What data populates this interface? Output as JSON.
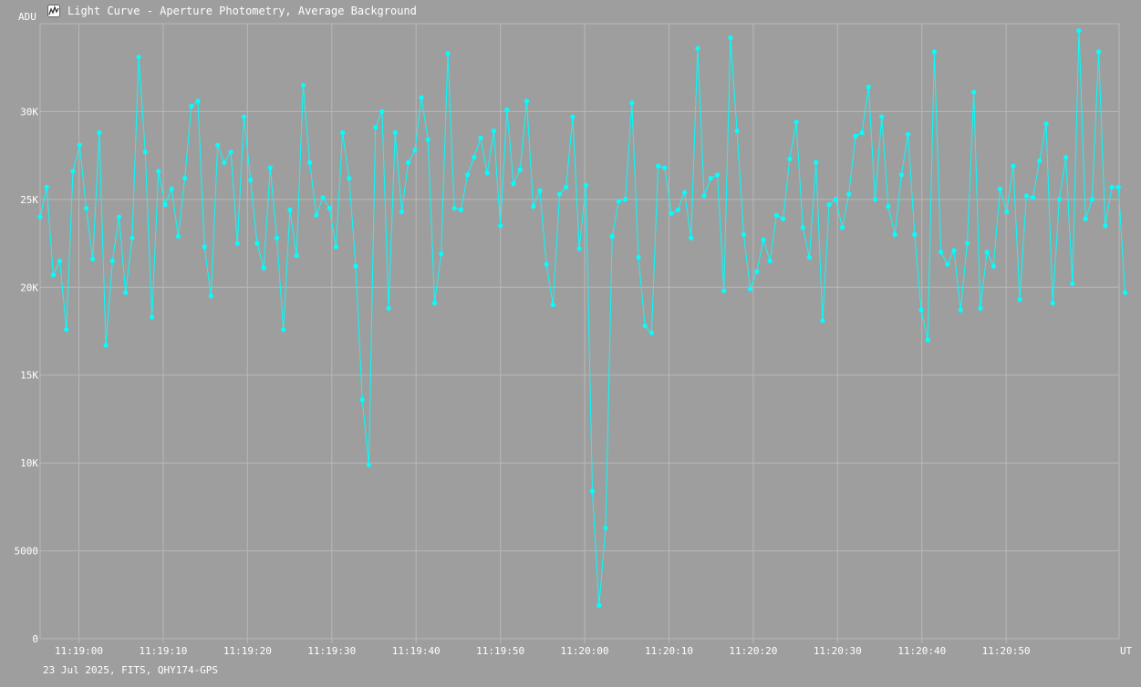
{
  "window": {
    "title": "Light Curve - Aperture Photometry, Average Background",
    "icon": "light-curve-app-icon"
  },
  "footer": {
    "text": "23 Jul 2025, FITS, QHY174-GPS"
  },
  "colors": {
    "background": "#9e9e9e",
    "grid": "#b8b8b8",
    "series": "#00ffff",
    "text": "#ffffff"
  },
  "chart_data": {
    "type": "line",
    "ylabel": "ADU",
    "xlabel": "UT",
    "ylim": [
      0,
      35000
    ],
    "xlim": [
      "11:18:55.4",
      "11:21:03.4"
    ],
    "y_ticks": [
      {
        "value": 0,
        "label": "0"
      },
      {
        "value": 5000,
        "label": "5000"
      },
      {
        "value": 10000,
        "label": "10K"
      },
      {
        "value": 15000,
        "label": "15K"
      },
      {
        "value": 20000,
        "label": "20K"
      },
      {
        "value": 25000,
        "label": "25K"
      },
      {
        "value": 30000,
        "label": "30K"
      }
    ],
    "x_ticks": [
      "11:19:00",
      "11:19:10",
      "11:19:20",
      "11:19:30",
      "11:19:40",
      "11:19:50",
      "11:20:00",
      "11:20:10",
      "11:20:20",
      "11:20:30",
      "11:20:40",
      "11:20:50"
    ],
    "grid": true,
    "series": [
      {
        "marker": "dot",
        "x_start": "11:18:55.4",
        "interval_s": 0.78,
        "values": [
          24000,
          25700,
          20700,
          21500,
          17600,
          26600,
          28100,
          24500,
          21600,
          28800,
          16700,
          21500,
          24000,
          19700,
          22800,
          33100,
          27700,
          18300,
          26600,
          24700,
          25600,
          22900,
          26200,
          30300,
          30600,
          22300,
          19500,
          28100,
          27100,
          27700,
          22500,
          29700,
          26100,
          22500,
          21100,
          26800,
          22800,
          17600,
          24400,
          21800,
          31500,
          27100,
          24100,
          25100,
          24500,
          22300,
          28800,
          26200,
          21200,
          13600,
          9900,
          29100,
          30000,
          18800,
          28800,
          24300,
          27100,
          27800,
          30800,
          28400,
          19100,
          21900,
          33300,
          24500,
          24400,
          26400,
          27400,
          28500,
          26500,
          28900,
          23500,
          30100,
          25900,
          26700,
          30600,
          24600,
          25500,
          21300,
          19000,
          25300,
          25700,
          29700,
          22200,
          25800,
          8400,
          1900,
          6300,
          22900,
          24900,
          25000,
          30500,
          21700,
          17800,
          17400,
          26900,
          26800,
          24200,
          24400,
          25400,
          22800,
          33600,
          25200,
          26200,
          26400,
          19800,
          34200,
          28900,
          23000,
          19900,
          20900,
          22700,
          21500,
          24100,
          23900,
          27300,
          29400,
          23400,
          21700,
          27100,
          18100,
          24700,
          25000,
          23400,
          25300,
          28600,
          28800,
          31400,
          25000,
          29700,
          24600,
          23000,
          26400,
          28700,
          23000,
          18700,
          17000,
          33400,
          22000,
          21300,
          22100,
          18700,
          22500,
          31100,
          18800,
          22000,
          21200,
          25600,
          24300,
          26900,
          19300,
          25200,
          25100,
          27200,
          29300,
          19100,
          25000,
          27400,
          20200,
          34600,
          23900,
          25000,
          33400,
          23500,
          25700,
          25700,
          19700
        ]
      }
    ]
  }
}
